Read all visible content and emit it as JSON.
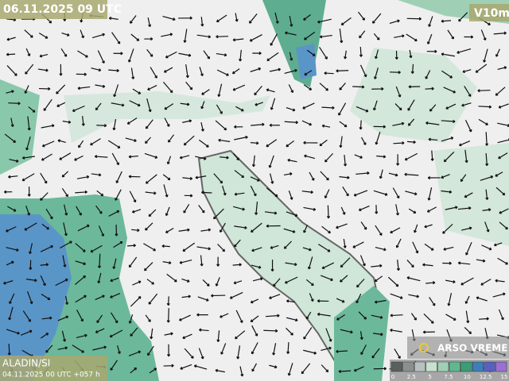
{
  "header": {
    "valid_time": "06.11.2025 09 UTC",
    "field": "V10m"
  },
  "footer": {
    "model": "ALADIN/SI",
    "run": "04.11.2025 00 UTC +057 h",
    "brand": "ARSO VREME"
  },
  "legend": {
    "labels": [
      "0",
      "2.5",
      "5",
      "7.5",
      "10",
      "12.5",
      "15"
    ],
    "colors": [
      "#5a6060",
      "#8a9090",
      "#b8c0c0",
      "#c8e0d0",
      "#9fd0b5",
      "#5fb88f",
      "#3a9c78",
      "#3c7fb8",
      "#5a60c0",
      "#9a70d0"
    ]
  }
}
